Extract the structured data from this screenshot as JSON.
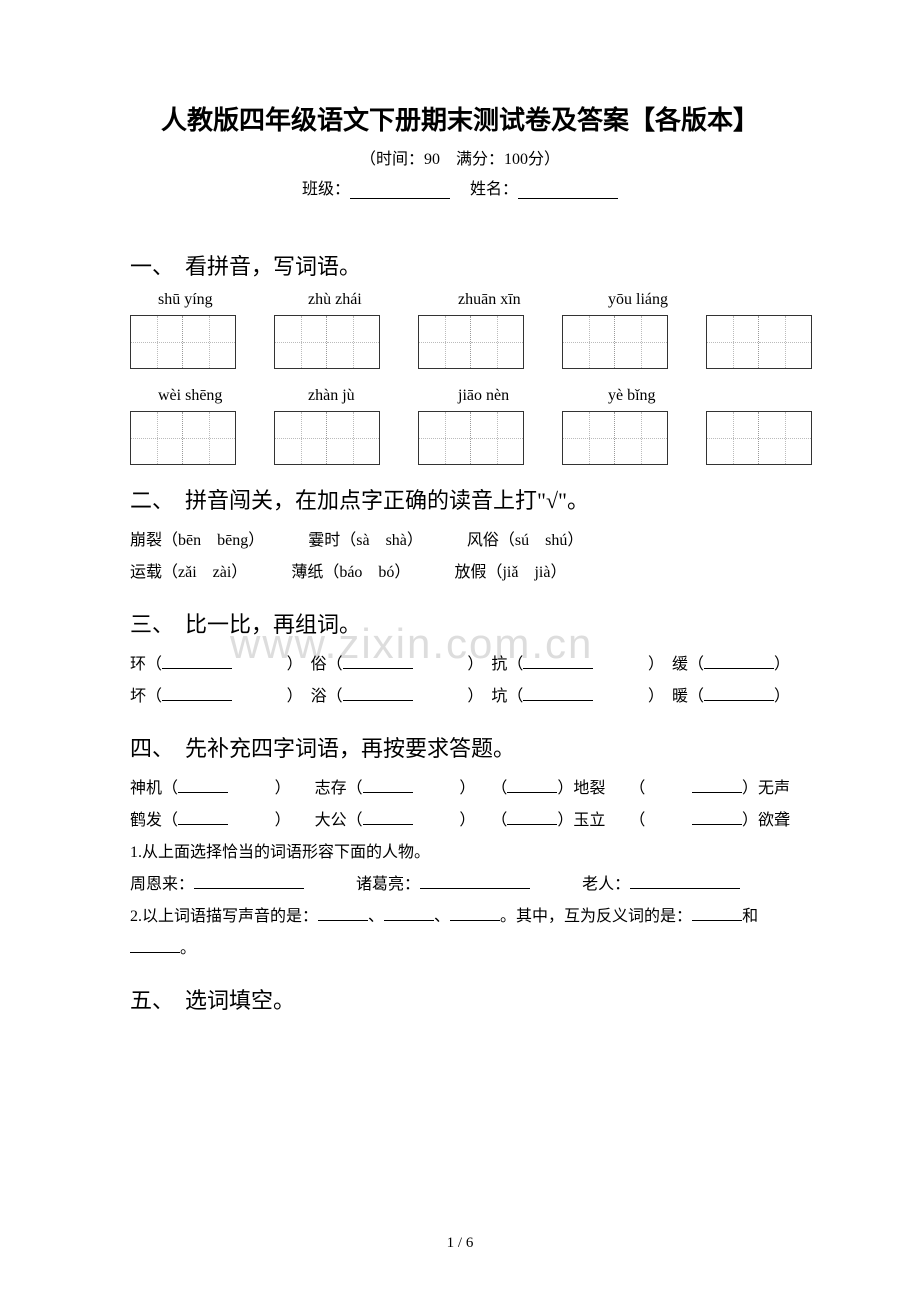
{
  "title": "人教版四年级语文下册期末测试卷及答案【各版本】",
  "subtitle": "（时间：90　满分：100分）",
  "class_label": "班级：",
  "name_label": "姓名：",
  "watermark": "www.zixin.com.cn",
  "footer": "1 / 6",
  "sections": {
    "s1": {
      "heading": "一、　看拼音，写词语。",
      "row1": [
        "shū yíng",
        "zhù zhái",
        "zhuān xīn",
        "yōu liáng"
      ],
      "row2": [
        "wèi shēng",
        "zhàn jù",
        "jiāo nèn",
        "yè bǐng"
      ]
    },
    "s2": {
      "heading": "二、　拼音闯关，在加点字正确的读音上打\"√\"。",
      "line1a": "崩裂（bēn　bēng）",
      "line1b": "霎时（sà　shà）",
      "line1c": "风俗（sú　shú）",
      "line2a": "运载（zǎi　zài）",
      "line2b": "薄纸（báo　bó）",
      "line2c": "放假（jiǎ　jià）"
    },
    "s3": {
      "heading": "三、　比一比，再组词。",
      "line1": [
        "环（",
        "）　俗（",
        "）　抗（",
        "）　缓（",
        "）"
      ],
      "line2": [
        "坏（",
        "）　浴（",
        "）　坑（",
        "）　暖（",
        "）"
      ]
    },
    "s4": {
      "heading": "四、　先补充四字词语，再按要求答题。",
      "line1": [
        "神机（",
        "）　　志存（",
        "）　　（",
        "）地裂　　（",
        "）无声"
      ],
      "line2": [
        "鹤发（",
        "）　　大公（",
        "）　　（",
        "）玉立　　（",
        "）欲聋"
      ],
      "q1": "1.从上面选择恰当的词语形容下面的人物。",
      "q1_people": [
        "周恩来：",
        "诸葛亮：",
        "老人："
      ],
      "q2_a": "2.以上词语描写声音的是：",
      "q2_b": "。其中，互为反义词的是：",
      "q2_c": "和",
      "q2_d": "。"
    },
    "s5": {
      "heading": "五、　选词填空。"
    }
  }
}
